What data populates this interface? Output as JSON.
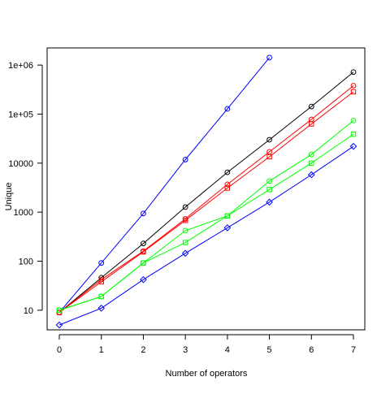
{
  "chart_data": {
    "type": "line",
    "title": "",
    "xlabel": "Number of operators",
    "ylabel": "Unique",
    "y_scale": "log10",
    "xlim": [
      0,
      7
    ],
    "ylim_log10": [
      0.6,
      6.35
    ],
    "x_ticks": [
      0,
      1,
      2,
      3,
      4,
      5,
      6,
      7
    ],
    "x_tick_labels": [
      "0",
      "1",
      "2",
      "3",
      "4",
      "5",
      "6",
      "7"
    ],
    "y_ticks": [
      10,
      100,
      1000,
      10000,
      100000,
      1000000
    ],
    "y_tick_labels": [
      "10",
      "100",
      "1000",
      "10000",
      "1e+05",
      "1e+06"
    ],
    "grid": false,
    "legend": "none",
    "series": [
      {
        "color": "#0000ff",
        "marker": "circle",
        "x": [
          0,
          1,
          2,
          3,
          4,
          5
        ],
        "values": [
          9,
          92,
          940,
          11800,
          128000,
          1420000
        ]
      },
      {
        "color": "#000000",
        "marker": "circle",
        "x": [
          0,
          1,
          2,
          3,
          4,
          5,
          6,
          7
        ],
        "values": [
          9,
          46,
          230,
          1270,
          6500,
          30000,
          143000,
          720000
        ]
      },
      {
        "color": "#ff0000",
        "marker": "circle",
        "x": [
          0,
          1,
          2,
          3,
          4,
          5,
          6,
          7
        ],
        "values": [
          9,
          42,
          160,
          730,
          3700,
          17000,
          78000,
          380000
        ]
      },
      {
        "color": "#ff0000",
        "marker": "square",
        "x": [
          0,
          1,
          2,
          3,
          4,
          5,
          6,
          7
        ],
        "values": [
          9,
          38,
          155,
          680,
          3100,
          13500,
          63000,
          285000
        ]
      },
      {
        "color": "#00ff00",
        "marker": "circle",
        "x": [
          0,
          1,
          2,
          3,
          4,
          5,
          6,
          7
        ],
        "values": [
          10,
          19,
          92,
          420,
          840,
          4300,
          15000,
          74000
        ]
      },
      {
        "color": "#00ff00",
        "marker": "square",
        "x": [
          0,
          1,
          2,
          3,
          4,
          5,
          6,
          7
        ],
        "values": [
          10,
          19,
          92,
          240,
          840,
          2900,
          10000,
          39000
        ]
      },
      {
        "color": "#0000ff",
        "marker": "diamond",
        "x": [
          0,
          1,
          2,
          3,
          4,
          5,
          6,
          7
        ],
        "values": [
          5,
          11,
          42,
          145,
          480,
          1600,
          5800,
          22000
        ]
      }
    ]
  }
}
